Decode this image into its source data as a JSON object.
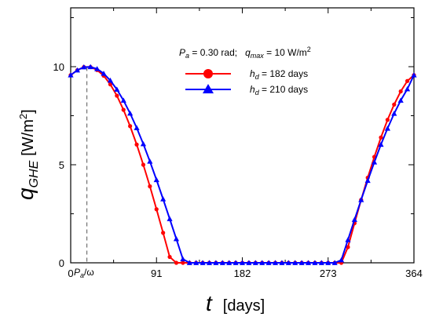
{
  "chart_data": {
    "type": "line",
    "ylabel": {
      "main": "q",
      "sub": "GHE",
      "unit": "[W/m",
      "unit_sup": "2",
      "unit_end": "]"
    },
    "xlabel": {
      "main": "t",
      "unit": "[days]"
    },
    "xlim": [
      0,
      364
    ],
    "ylim": [
      0,
      13
    ],
    "xticks": [
      0,
      91,
      182,
      273,
      364
    ],
    "yticks": [
      0,
      5,
      10
    ],
    "grid": false,
    "legend_position": "top-right",
    "annotation": {
      "text": "P",
      "sub": "a",
      "rest": "/ω",
      "x": 17.2
    },
    "legend_header": {
      "pa_prefix": "P",
      "pa_sub": "a",
      "pa_text": " = 0.30 rad;   ",
      "q_prefix": "q",
      "q_sub": "max",
      "q_text": " = 10 W/m",
      "q_sup": "2"
    },
    "series": [
      {
        "name": "h_d = 182 days",
        "legend_prefix": "h",
        "legend_sub": "d",
        "legend_text": " = 182 days",
        "color": "#ff0000",
        "marker": "circle",
        "x": [
          0,
          7,
          14,
          21,
          28,
          35,
          42,
          49,
          56,
          63,
          70,
          77,
          84,
          91,
          98,
          105,
          112,
          119,
          126,
          133,
          140,
          147,
          154,
          161,
          168,
          175,
          182,
          189,
          196,
          203,
          210,
          217,
          224,
          231,
          238,
          245,
          252,
          259,
          266,
          273,
          280,
          287,
          294,
          301,
          308,
          315,
          322,
          329,
          336,
          343,
          350,
          357,
          364
        ],
        "values": [
          9.57,
          9.82,
          9.98,
          9.98,
          9.83,
          9.54,
          9.1,
          8.52,
          7.8,
          6.97,
          6.03,
          5.0,
          3.9,
          2.73,
          1.53,
          0.3,
          0,
          0,
          0,
          0,
          0,
          0,
          0,
          0,
          0,
          0,
          0,
          0,
          0,
          0,
          0,
          0,
          0,
          0,
          0,
          0,
          0,
          0,
          0,
          0,
          0,
          0,
          0.8,
          2.02,
          3.21,
          4.34,
          5.4,
          6.39,
          7.29,
          8.07,
          8.74,
          9.27,
          9.57
        ]
      },
      {
        "name": "h_d = 210 days",
        "legend_prefix": "h",
        "legend_sub": "d",
        "legend_text": " = 210 days",
        "color": "#0000ff",
        "marker": "triangle",
        "x": [
          0,
          7,
          14,
          21,
          28,
          35,
          42,
          49,
          56,
          63,
          70,
          77,
          84,
          91,
          98,
          105,
          112,
          119,
          126,
          133,
          140,
          147,
          154,
          161,
          168,
          175,
          182,
          189,
          196,
          203,
          210,
          217,
          224,
          231,
          238,
          245,
          252,
          259,
          266,
          273,
          280,
          287,
          294,
          301,
          308,
          315,
          322,
          329,
          336,
          343,
          350,
          357,
          364
        ],
        "values": [
          9.57,
          9.82,
          9.98,
          9.99,
          9.89,
          9.65,
          9.3,
          8.84,
          8.28,
          7.62,
          6.88,
          6.06,
          5.17,
          4.23,
          3.25,
          2.24,
          1.22,
          0.19,
          0,
          0,
          0,
          0,
          0,
          0,
          0,
          0,
          0,
          0,
          0,
          0,
          0,
          0,
          0,
          0,
          0,
          0,
          0,
          0,
          0,
          0,
          0,
          0.14,
          1.17,
          2.2,
          3.21,
          4.19,
          5.13,
          6.03,
          6.85,
          7.61,
          8.28,
          8.86,
          9.57
        ]
      }
    ]
  }
}
